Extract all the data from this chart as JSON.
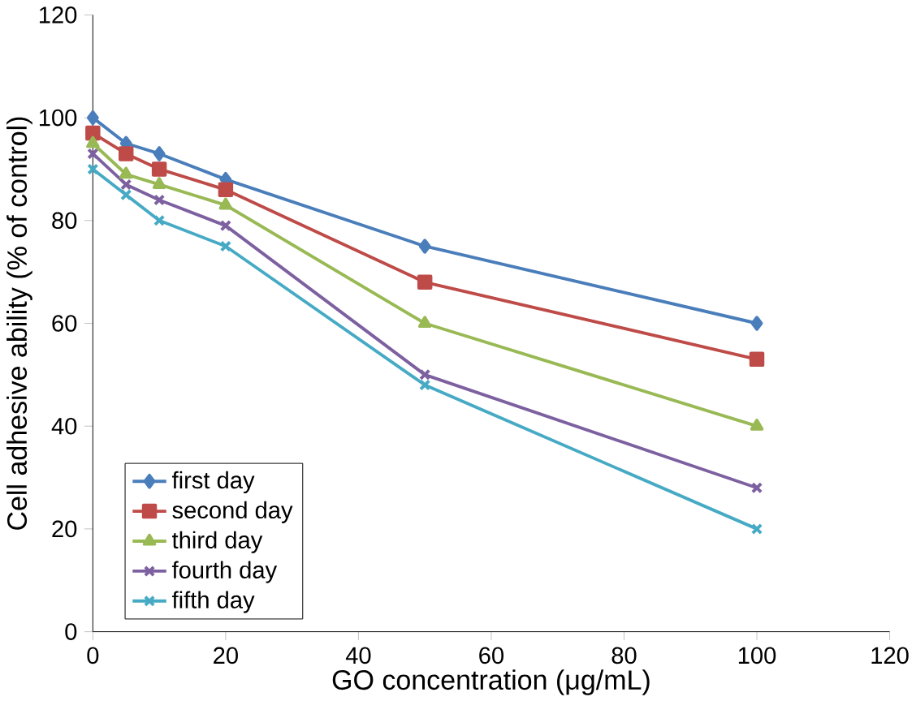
{
  "chart_data": {
    "type": "line",
    "xlabel": "GO concentration (μg/mL)",
    "ylabel": "Cell adhesive ability (% of control)",
    "x": [
      0,
      5,
      10,
      20,
      50,
      100
    ],
    "series": [
      {
        "name": "first day",
        "color": "#4a7ebb",
        "marker": "diamond",
        "values": [
          100,
          95,
          93,
          88,
          75,
          60
        ]
      },
      {
        "name": "second day",
        "color": "#be4b48",
        "marker": "square",
        "values": [
          97,
          93,
          90,
          86,
          68,
          53
        ]
      },
      {
        "name": "third day",
        "color": "#98b954",
        "marker": "triangle",
        "values": [
          95,
          89,
          87,
          83,
          60,
          40
        ]
      },
      {
        "name": "fourth day",
        "color": "#7d60a0",
        "marker": "cross",
        "values": [
          93,
          87,
          84,
          79,
          50,
          28
        ]
      },
      {
        "name": "fifth day",
        "color": "#46aac5",
        "marker": "cross",
        "values": [
          90,
          85,
          80,
          75,
          48,
          20
        ]
      }
    ],
    "xlim": [
      0,
      120
    ],
    "xticks": [
      0,
      20,
      40,
      60,
      80,
      100,
      120
    ],
    "ylim": [
      0,
      120
    ],
    "yticks": [
      0,
      20,
      40,
      60,
      80,
      100,
      120
    ],
    "grid": false,
    "legend": "bottom left",
    "line_style": "solid"
  }
}
